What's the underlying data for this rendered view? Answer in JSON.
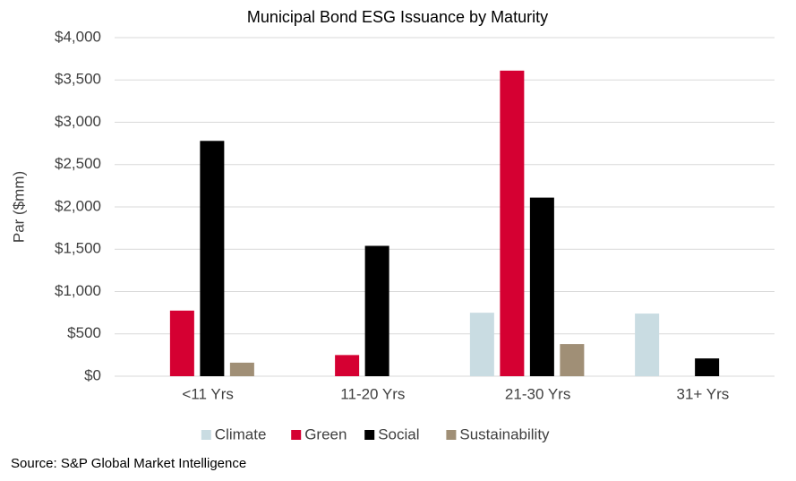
{
  "chart_data": {
    "type": "bar",
    "title": "Municipal Bond ESG Issuance by Maturity",
    "y_label": "Par ($mm)",
    "source": "Source: S&P Global Market Intelligence",
    "categories": [
      "<11 Yrs",
      "11-20 Yrs",
      "21-30 Yrs",
      "31+ Yrs"
    ],
    "series": [
      {
        "name": "Climate",
        "color": "#c9dce2",
        "values": [
          null,
          null,
          750,
          740
        ]
      },
      {
        "name": "Green",
        "color": "#d50032",
        "values": [
          775,
          250,
          3610,
          null
        ]
      },
      {
        "name": "Social",
        "color": "#000000",
        "values": [
          2780,
          1540,
          2110,
          210
        ]
      },
      {
        "name": "Sustainability",
        "color": "#a08f76",
        "values": [
          160,
          null,
          380,
          null
        ]
      }
    ],
    "ylim": [
      0,
      4000
    ],
    "yticks": [
      {
        "value": 0,
        "label": "$0"
      },
      {
        "value": 500,
        "label": "$500"
      },
      {
        "value": 1000,
        "label": "$1,000"
      },
      {
        "value": 1500,
        "label": "$1,500"
      },
      {
        "value": 2000,
        "label": "$2,000"
      },
      {
        "value": 2500,
        "label": "$2,500"
      },
      {
        "value": 3000,
        "label": "$3,000"
      },
      {
        "value": 3500,
        "label": "$3,500"
      },
      {
        "value": 4000,
        "label": "$4,000"
      }
    ],
    "grid": true,
    "legend": "bottom"
  }
}
